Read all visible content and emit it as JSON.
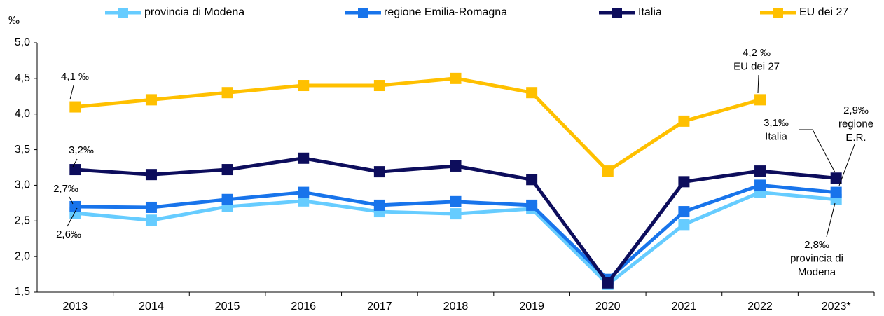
{
  "chart_data": {
    "type": "line",
    "y_unit": "‰",
    "categories": [
      "2013",
      "2014",
      "2015",
      "2016",
      "2017",
      "2018",
      "2019",
      "2020",
      "2021",
      "2022",
      "2023*"
    ],
    "series": [
      {
        "name": "provincia di Modena",
        "color": "#66ccff",
        "values": [
          2.61,
          2.51,
          2.7,
          2.78,
          2.63,
          2.6,
          2.67,
          1.61,
          2.45,
          2.9,
          2.8
        ]
      },
      {
        "name": "regione Emilia-Romagna",
        "color": "#1874eb",
        "values": [
          2.7,
          2.69,
          2.8,
          2.9,
          2.72,
          2.77,
          2.72,
          1.68,
          2.63,
          3.0,
          2.9
        ]
      },
      {
        "name": "Italia",
        "color": "#0d0d5c",
        "values": [
          3.22,
          3.15,
          3.22,
          3.38,
          3.19,
          3.27,
          3.08,
          1.63,
          3.05,
          3.2,
          3.1
        ]
      },
      {
        "name": "EU dei 27",
        "color": "#ffc000",
        "values": [
          4.1,
          4.2,
          4.3,
          4.4,
          4.4,
          4.5,
          4.3,
          3.2,
          3.9,
          4.2,
          null
        ]
      }
    ],
    "ylim": [
      1.5,
      5.0
    ],
    "yticks": [
      {
        "value": 1.5,
        "label": "1,5"
      },
      {
        "value": 2.0,
        "label": "2,0"
      },
      {
        "value": 2.5,
        "label": "2,5"
      },
      {
        "value": 3.0,
        "label": "3,0"
      },
      {
        "value": 3.5,
        "label": "3,5"
      },
      {
        "value": 4.0,
        "label": "4,0"
      },
      {
        "value": 4.5,
        "label": "4,5"
      },
      {
        "value": 5.0,
        "label": "5,0"
      }
    ],
    "grid": false,
    "legend": "top",
    "annotations": [
      {
        "lines": [
          "4,1 ‰"
        ]
      },
      {
        "lines": [
          "3,2‰"
        ]
      },
      {
        "lines": [
          "2,7‰"
        ]
      },
      {
        "lines": [
          "2,6‰"
        ]
      },
      {
        "lines": [
          "4,2 ‰",
          "EU dei 27"
        ]
      },
      {
        "lines": [
          "3,1‰",
          "Italia"
        ]
      },
      {
        "lines": [
          "2,9‰",
          "regione",
          "E.R."
        ]
      },
      {
        "lines": [
          "2,8‰",
          "provincia di",
          "Modena"
        ]
      }
    ]
  }
}
